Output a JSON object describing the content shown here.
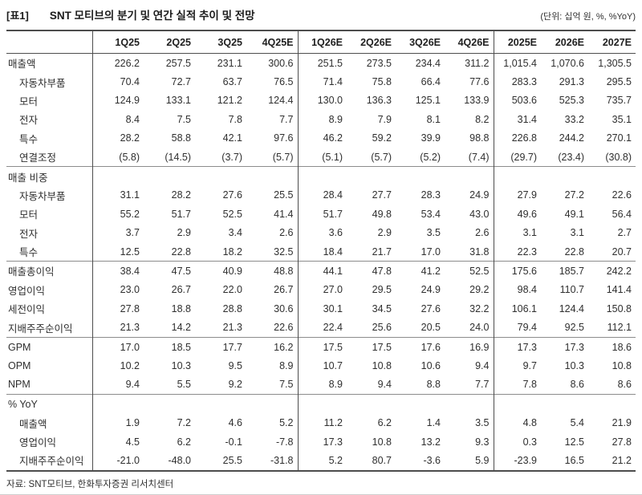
{
  "header": {
    "tag": "[표1]",
    "title": "SNT 모티브의 분기 및 연간 실적 추이 및 전망",
    "unit": "(단위: 십억 원, %, %YoY)"
  },
  "table": {
    "columns": [
      "1Q25",
      "2Q25",
      "3Q25",
      "4Q25E",
      "1Q26E",
      "2Q26E",
      "3Q26E",
      "4Q26E",
      "2025E",
      "2026E",
      "2027E"
    ],
    "sections": [
      {
        "name": "revenue",
        "rows": [
          {
            "label": "매출액",
            "indent": false,
            "values": [
              "226.2",
              "257.5",
              "231.1",
              "300.6",
              "251.5",
              "273.5",
              "234.4",
              "311.2",
              "1,015.4",
              "1,070.6",
              "1,305.5"
            ]
          },
          {
            "label": "자동차부품",
            "indent": true,
            "values": [
              "70.4",
              "72.7",
              "63.7",
              "76.5",
              "71.4",
              "75.8",
              "66.4",
              "77.6",
              "283.3",
              "291.3",
              "295.5"
            ]
          },
          {
            "label": "모터",
            "indent": true,
            "values": [
              "124.9",
              "133.1",
              "121.2",
              "124.4",
              "130.0",
              "136.3",
              "125.1",
              "133.9",
              "503.6",
              "525.3",
              "735.7"
            ]
          },
          {
            "label": "전자",
            "indent": true,
            "values": [
              "8.4",
              "7.5",
              "7.8",
              "7.7",
              "8.9",
              "7.9",
              "8.1",
              "8.2",
              "31.4",
              "33.2",
              "35.1"
            ]
          },
          {
            "label": "특수",
            "indent": true,
            "values": [
              "28.2",
              "58.8",
              "42.1",
              "97.6",
              "46.2",
              "59.2",
              "39.9",
              "98.8",
              "226.8",
              "244.2",
              "270.1"
            ]
          },
          {
            "label": "연결조정",
            "indent": true,
            "values": [
              "(5.8)",
              "(14.5)",
              "(3.7)",
              "(5.7)",
              "(5.1)",
              "(5.7)",
              "(5.2)",
              "(7.4)",
              "(29.7)",
              "(23.4)",
              "(30.8)"
            ]
          }
        ]
      },
      {
        "name": "revenue-mix",
        "rows": [
          {
            "label": "매출 비중",
            "indent": false,
            "values": []
          },
          {
            "label": "자동차부품",
            "indent": true,
            "values": [
              "31.1",
              "28.2",
              "27.6",
              "25.5",
              "28.4",
              "27.7",
              "28.3",
              "24.9",
              "27.9",
              "27.2",
              "22.6"
            ]
          },
          {
            "label": "모터",
            "indent": true,
            "values": [
              "55.2",
              "51.7",
              "52.5",
              "41.4",
              "51.7",
              "49.8",
              "53.4",
              "43.0",
              "49.6",
              "49.1",
              "56.4"
            ]
          },
          {
            "label": "전자",
            "indent": true,
            "values": [
              "3.7",
              "2.9",
              "3.4",
              "2.6",
              "3.6",
              "2.9",
              "3.5",
              "2.6",
              "3.1",
              "3.1",
              "2.7"
            ]
          },
          {
            "label": "특수",
            "indent": true,
            "values": [
              "12.5",
              "22.8",
              "18.2",
              "32.5",
              "18.4",
              "21.7",
              "17.0",
              "31.8",
              "22.3",
              "22.8",
              "20.7"
            ]
          }
        ]
      },
      {
        "name": "profits",
        "rows": [
          {
            "label": "매출총이익",
            "indent": false,
            "values": [
              "38.4",
              "47.5",
              "40.9",
              "48.8",
              "44.1",
              "47.8",
              "41.2",
              "52.5",
              "175.6",
              "185.7",
              "242.2"
            ]
          },
          {
            "label": "영업이익",
            "indent": false,
            "values": [
              "23.0",
              "26.7",
              "22.0",
              "26.7",
              "27.0",
              "29.5",
              "24.9",
              "29.2",
              "98.4",
              "110.7",
              "141.4"
            ]
          },
          {
            "label": "세전이익",
            "indent": false,
            "values": [
              "27.8",
              "18.8",
              "28.8",
              "30.6",
              "30.1",
              "34.5",
              "27.6",
              "32.2",
              "106.1",
              "124.4",
              "150.8"
            ]
          },
          {
            "label": "지배주주순이익",
            "indent": false,
            "values": [
              "21.3",
              "14.2",
              "21.3",
              "22.6",
              "22.4",
              "25.6",
              "20.5",
              "24.0",
              "79.4",
              "92.5",
              "112.1"
            ]
          }
        ]
      },
      {
        "name": "margins",
        "rows": [
          {
            "label": "GPM",
            "indent": false,
            "values": [
              "17.0",
              "18.5",
              "17.7",
              "16.2",
              "17.5",
              "17.5",
              "17.6",
              "16.9",
              "17.3",
              "17.3",
              "18.6"
            ]
          },
          {
            "label": "OPM",
            "indent": false,
            "values": [
              "10.2",
              "10.3",
              "9.5",
              "8.9",
              "10.7",
              "10.8",
              "10.6",
              "9.4",
              "9.7",
              "10.3",
              "10.8"
            ]
          },
          {
            "label": "NPM",
            "indent": false,
            "values": [
              "9.4",
              "5.5",
              "9.2",
              "7.5",
              "8.9",
              "9.4",
              "8.8",
              "7.7",
              "7.8",
              "8.6",
              "8.6"
            ]
          }
        ]
      },
      {
        "name": "yoy",
        "rows": [
          {
            "label": "% YoY",
            "indent": false,
            "values": []
          },
          {
            "label": "매출액",
            "indent": true,
            "values": [
              "1.9",
              "7.2",
              "4.6",
              "5.2",
              "11.2",
              "6.2",
              "1.4",
              "3.5",
              "4.8",
              "5.4",
              "21.9"
            ]
          },
          {
            "label": "영업이익",
            "indent": true,
            "values": [
              "4.5",
              "6.2",
              "-0.1",
              "-7.8",
              "17.3",
              "10.8",
              "13.2",
              "9.3",
              "0.3",
              "12.5",
              "27.8"
            ]
          },
          {
            "label": "지배주주순이익",
            "indent": true,
            "values": [
              "-21.0",
              "-48.0",
              "25.5",
              "-31.8",
              "5.2",
              "80.7",
              "-3.6",
              "5.9",
              "-23.9",
              "16.5",
              "21.2"
            ]
          }
        ]
      }
    ]
  },
  "footer": {
    "source": "자료: SNT모티브, 한화투자증권 리서치센터"
  }
}
